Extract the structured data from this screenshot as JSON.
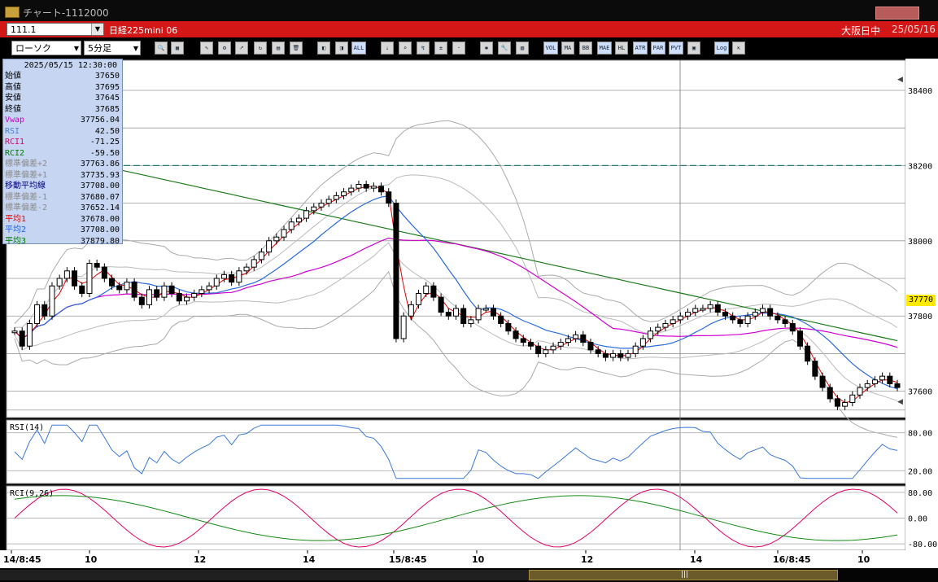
{
  "window": {
    "title": "チャート-1112000"
  },
  "header": {
    "code_value": "111.1",
    "instrument": "日経225mini 06",
    "market_status": "大阪日中",
    "date": "25/05/16"
  },
  "toolbar": {
    "chart_type": "ローソク",
    "interval": "5分足",
    "buttons": [
      {
        "name": "zoom-icon",
        "glyph": "🔍"
      },
      {
        "name": "window-icon",
        "glyph": "▦"
      },
      {
        "name": "draw-line-icon",
        "glyph": "✎"
      },
      {
        "name": "tool-icon",
        "glyph": "⚙"
      },
      {
        "name": "pointer-icon",
        "glyph": "➚"
      },
      {
        "name": "redo-icon",
        "glyph": "↻"
      },
      {
        "name": "note-icon",
        "glyph": "▤"
      },
      {
        "name": "trash-icon",
        "glyph": "🗑"
      },
      {
        "name": "candle-left-icon",
        "glyph": "◧"
      },
      {
        "name": "candle-right-icon",
        "glyph": "◨"
      },
      {
        "name": "all-icon",
        "glyph": "ALL"
      },
      {
        "name": "order-icon",
        "glyph": "⇣"
      },
      {
        "name": "search-chart-icon",
        "glyph": "⌕"
      },
      {
        "name": "indicator-icon",
        "glyph": "↯"
      },
      {
        "name": "plus-icon",
        "glyph": "±"
      },
      {
        "name": "disabled-icon",
        "glyph": "·"
      },
      {
        "name": "settings-icon",
        "glyph": "✱"
      },
      {
        "name": "wrench-icon",
        "glyph": "🔧"
      },
      {
        "name": "palette-icon",
        "glyph": "▧"
      },
      {
        "name": "vol-icon",
        "glyph": "VOL"
      },
      {
        "name": "ma-icon",
        "glyph": "MA"
      },
      {
        "name": "bb-icon",
        "glyph": "BB"
      },
      {
        "name": "mae-icon",
        "glyph": "MAE"
      },
      {
        "name": "hl-icon",
        "glyph": "HL"
      },
      {
        "name": "atr-icon",
        "glyph": "ATR"
      },
      {
        "name": "psar-icon",
        "glyph": "PAR"
      },
      {
        "name": "pvt-icon",
        "glyph": "PVT"
      },
      {
        "name": "frame-icon",
        "glyph": "▣"
      },
      {
        "name": "log-icon",
        "glyph": "Log"
      },
      {
        "name": "export-icon",
        "glyph": "⇱"
      }
    ]
  },
  "infobox": {
    "datetime": "2025/05/15  12:30:00",
    "rows": [
      {
        "label": "始値",
        "value": "37650",
        "color": "#000000"
      },
      {
        "label": "高値",
        "value": "37695",
        "color": "#000000"
      },
      {
        "label": "安値",
        "value": "37645",
        "color": "#000000"
      },
      {
        "label": "終値",
        "value": "37685",
        "color": "#000000"
      },
      {
        "label": "Vwap",
        "value": "37756.04",
        "color": "#c800c8"
      },
      {
        "label": "RSI",
        "value": "42.50",
        "color": "#4a7fd6"
      },
      {
        "label": "RCI1",
        "value": "-71.25",
        "color": "#e0006a"
      },
      {
        "label": "RCI2",
        "value": "-59.50",
        "color": "#007a00"
      },
      {
        "label": "標準偏差+2",
        "value": "37763.86",
        "color": "#8a8a8a"
      },
      {
        "label": "標準偏差+1",
        "value": "37735.93",
        "color": "#8a8a8a"
      },
      {
        "label": "移動平均線",
        "value": "37708.00",
        "color": "#000080"
      },
      {
        "label": "標準偏差-1",
        "value": "37680.07",
        "color": "#8a8a8a"
      },
      {
        "label": "標準偏差-2",
        "value": "37652.14",
        "color": "#8a8a8a"
      },
      {
        "label": "平均1",
        "value": "37678.00",
        "color": "#e00000"
      },
      {
        "label": "平均2",
        "value": "37708.00",
        "color": "#1f5fe0"
      },
      {
        "label": "平均3",
        "value": "37879.80",
        "color": "#007a00"
      }
    ]
  },
  "chart_data": {
    "type": "candlestick",
    "price_axis_ticks": [
      "38400",
      "38200",
      "38000",
      "37800",
      "37600"
    ],
    "ylim": [
      37530,
      38480
    ],
    "current_price": "37770",
    "reference_line": 38200,
    "x_tick_labels": [
      "14/8:45",
      "10",
      "12",
      "14",
      "15/8:45",
      "10",
      "12",
      "14",
      "16/8:45",
      "10"
    ],
    "closes": [
      37760,
      37720,
      37780,
      37830,
      37800,
      37880,
      37900,
      37920,
      37880,
      37860,
      37940,
      37930,
      37900,
      37880,
      37870,
      37890,
      37850,
      37830,
      37870,
      37850,
      37880,
      37860,
      37840,
      37850,
      37860,
      37870,
      37880,
      37900,
      37910,
      37890,
      37920,
      37930,
      37950,
      37970,
      38000,
      38010,
      38030,
      38050,
      38060,
      38080,
      38090,
      38100,
      38110,
      38120,
      38130,
      38140,
      38150,
      38140,
      38145,
      38130,
      38100,
      37740,
      37800,
      37830,
      37860,
      37880,
      37850,
      37810,
      37800,
      37820,
      37780,
      37790,
      37820,
      37820,
      37800,
      37780,
      37760,
      37740,
      37730,
      37720,
      37700,
      37710,
      37720,
      37730,
      37740,
      37750,
      37730,
      37710,
      37700,
      37690,
      37700,
      37690,
      37700,
      37720,
      37740,
      37760,
      37770,
      37780,
      37790,
      37800,
      37810,
      37820,
      37820,
      37830,
      37810,
      37800,
      37790,
      37780,
      37800,
      37810,
      37820,
      37800,
      37790,
      37780,
      37760,
      37720,
      37680,
      37640,
      37610,
      37580,
      37560,
      37570,
      37590,
      37610,
      37620,
      37630,
      37640,
      37620,
      37610
    ],
    "rsi": {
      "label": "RSI(14)",
      "ticks": [
        "80.00",
        "20.00"
      ]
    },
    "rci": {
      "label": "RCI(9,26)",
      "ticks": [
        "80.00",
        "0.00",
        "-80.00"
      ]
    }
  }
}
